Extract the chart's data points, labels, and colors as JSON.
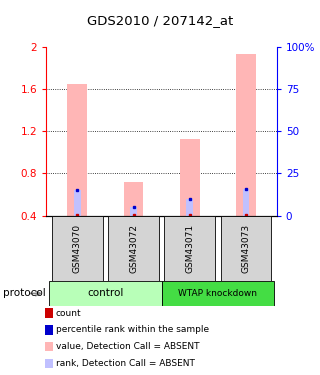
{
  "title": "GDS2010 / 207142_at",
  "samples": [
    "GSM43070",
    "GSM43072",
    "GSM43071",
    "GSM43073"
  ],
  "ylim_left": [
    0.4,
    2.0
  ],
  "ylim_right": [
    0,
    100
  ],
  "yticks_left": [
    0.4,
    0.8,
    1.2,
    1.6,
    2.0
  ],
  "yticks_right": [
    0,
    25,
    50,
    75,
    100
  ],
  "ytick_labels_left": [
    "0.4",
    "0.8",
    "1.2",
    "1.6",
    "2"
  ],
  "ytick_labels_right": [
    "0",
    "25",
    "50",
    "75",
    "100%"
  ],
  "pink_bar_tops": [
    1.65,
    0.72,
    1.13,
    1.93
  ],
  "blue_bar_pct": [
    15,
    5,
    10,
    16
  ],
  "pink_color": "#ffb6b6",
  "blue_color": "#c0c0ff",
  "red_dot_color": "#cc0000",
  "blue_dot_color": "#0000cc",
  "bar_width": 0.35,
  "blue_bar_width": 0.12,
  "sample_box_color": "#d4d4d4",
  "control_color": "#b8ffb8",
  "wtap_color": "#44dd44",
  "legend_items": [
    {
      "color": "#cc0000",
      "label": "count"
    },
    {
      "color": "#0000cc",
      "label": "percentile rank within the sample"
    },
    {
      "color": "#ffb6b6",
      "label": "value, Detection Call = ABSENT"
    },
    {
      "color": "#c0c0ff",
      "label": "rank, Detection Call = ABSENT"
    }
  ]
}
